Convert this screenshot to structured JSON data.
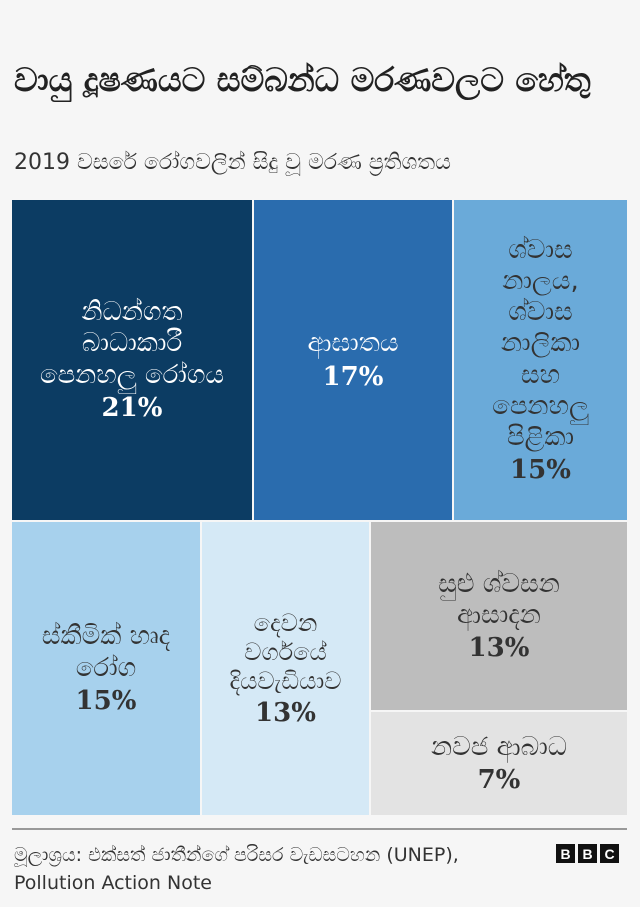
{
  "chart_data": {
    "type": "treemap",
    "title": "වායු දූෂණයට සම්බන්ධ මරණවලට හේතු",
    "subtitle": "2019 වසරේ රෝගවලින් සිදු වූ මරණ ප්‍රතිශතය",
    "items": [
      {
        "label": "නිධන්ගත බාධාකාරී පෙනහලු රෝගය",
        "value": 21,
        "value_label": "21%",
        "color": "#0c3c63",
        "text": "light"
      },
      {
        "label": "ආඝාතය",
        "value": 17,
        "value_label": "17%",
        "color": "#2a6cae",
        "text": "light"
      },
      {
        "label": "ශ්වාස නාලය, ශ්වාස නාලිකා සහ පෙනහලු පිළිකා",
        "value": 15,
        "value_label": "15%",
        "color": "#6aaad9",
        "text": "dark"
      },
      {
        "label": "ස්කීමික් හෘද රෝග",
        "value": 15,
        "value_label": "15%",
        "color": "#a7d1ed",
        "text": "dark"
      },
      {
        "label": "දෙවන වර්ගයේ දියවැඩියාව",
        "value": 13,
        "value_label": "13%",
        "color": "#d5e9f6",
        "text": "dark"
      },
      {
        "label": "සුළු ශ්වසන ආසාදන",
        "value": 13,
        "value_label": "13%",
        "color": "#bdbdbd",
        "text": "dark"
      },
      {
        "label": "නවජ ආබාධ",
        "value": 7,
        "value_label": "7%",
        "color": "#e3e3e3",
        "text": "dark"
      }
    ]
  },
  "footer": {
    "source": "මූලාශ්‍රය: එක්සත් ජාතීන්ගේ පරිසර වැඩසටහන (UNEP), Pollution Action Note",
    "logo_letters": [
      "B",
      "B",
      "C"
    ]
  }
}
